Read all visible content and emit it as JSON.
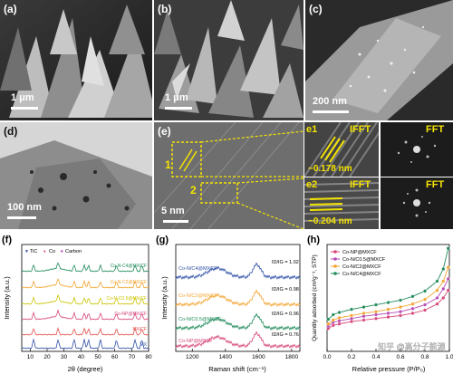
{
  "panels": {
    "a": {
      "label": "(a)",
      "scale": "1 μm"
    },
    "b": {
      "label": "(b)",
      "scale": "1 μm"
    },
    "c": {
      "label": "(c)",
      "scale": "200 nm"
    },
    "d": {
      "label": "(d)",
      "scale": "100 nm"
    },
    "e": {
      "label": "(e)",
      "scale": "5 nm",
      "box1": "1",
      "box2": "2"
    },
    "e1": {
      "label": "e1",
      "ifft": "IFFT",
      "fft": "FFT",
      "spacing": "~0.178 nm"
    },
    "e2": {
      "label": "e2",
      "ifft": "IFFT",
      "fft": "FFT",
      "spacing": "~0.204 nm"
    }
  },
  "colors": {
    "blue": "#2e4fa7",
    "red": "#e0504a",
    "pink": "#d6457a",
    "orange": "#f2a531",
    "yellow": "#c9c400",
    "green": "#1f8a5a",
    "purple": "#b44bb5",
    "gray": "#9a9a9a"
  },
  "chart_data": [
    {
      "id": "f",
      "label": "(f)",
      "type": "line",
      "xlabel": "2θ (degree)",
      "ylabel": "Intensity (a.u.)",
      "xlim": [
        5,
        80
      ],
      "xticks": [
        10,
        20,
        30,
        40,
        50,
        60,
        70,
        80
      ],
      "legend": [
        {
          "name": "TiC",
          "marker": "▼"
        },
        {
          "name": "Co",
          "marker": "♦"
        },
        {
          "name": "Carbon",
          "marker": "★"
        }
      ],
      "series": [
        {
          "name": "Co-N-C4@MX/CF"
        },
        {
          "name": "Co-N-C2@MX/CF"
        },
        {
          "name": "Co-N-C0.5@MX/CF"
        },
        {
          "name": "Co-NP@MX/CF"
        },
        {
          "name": "MX/CF"
        },
        {
          "name": "MX"
        }
      ]
    },
    {
      "id": "g",
      "label": "(g)",
      "type": "line",
      "xlabel": "Raman shift (cm⁻¹)",
      "ylabel": "Intensity (a.u.)",
      "xlim": [
        1100,
        1850
      ],
      "xticks": [
        1200,
        1400,
        1600,
        1800
      ],
      "series": [
        {
          "name": "Co-N/C4@MXCF",
          "ratio": "ID/IG = 1.02"
        },
        {
          "name": "Co-N/C2@MXCF",
          "ratio": "ID/IG = 0.98"
        },
        {
          "name": "Co-N/C0.5@MXCF",
          "ratio": "ID/IG = 0.96"
        },
        {
          "name": "Co-NP@MXCF",
          "ratio": "ID/IG = 0.76"
        }
      ]
    },
    {
      "id": "h",
      "label": "(h)",
      "type": "line",
      "xlabel": "Relative pressure (P/P₀)",
      "ylabel": "Quantity adsorbed (cm³g⁻¹, STP)",
      "xlim": [
        0,
        1.0
      ],
      "xticks": [
        0.0,
        0.2,
        0.4,
        0.6,
        0.8,
        1.0
      ],
      "xtick_labels": [
        "0.0",
        "0.2",
        "0.4",
        "0.6",
        "0.8",
        "1.0"
      ],
      "ylim": [
        0,
        140
      ],
      "series": [
        {
          "name": "Co-NP@MXCF",
          "x": [
            0.01,
            0.05,
            0.1,
            0.2,
            0.3,
            0.4,
            0.5,
            0.6,
            0.7,
            0.8,
            0.9,
            0.95,
            0.99
          ],
          "y": [
            30,
            34,
            36,
            39,
            41,
            43,
            45,
            47,
            50,
            54,
            62,
            70,
            80
          ]
        },
        {
          "name": "Co-N/C0.5@MXCF",
          "x": [
            0.01,
            0.05,
            0.1,
            0.2,
            0.3,
            0.4,
            0.5,
            0.6,
            0.7,
            0.8,
            0.9,
            0.95,
            0.99
          ],
          "y": [
            33,
            38,
            40,
            43,
            46,
            48,
            50,
            52,
            56,
            61,
            70,
            82,
            95
          ]
        },
        {
          "name": "Co-N/C2@MXCF",
          "x": [
            0.01,
            0.05,
            0.1,
            0.2,
            0.3,
            0.4,
            0.5,
            0.6,
            0.7,
            0.8,
            0.9,
            0.95,
            0.99
          ],
          "y": [
            36,
            41,
            44,
            47,
            50,
            52,
            55,
            58,
            62,
            68,
            80,
            92,
            110
          ]
        },
        {
          "name": "Co-N/C4@MXCF",
          "x": [
            0.01,
            0.05,
            0.1,
            0.2,
            0.3,
            0.4,
            0.5,
            0.6,
            0.7,
            0.8,
            0.9,
            0.95,
            0.99
          ],
          "y": [
            42,
            48,
            51,
            55,
            58,
            61,
            64,
            67,
            72,
            79,
            92,
            108,
            135
          ]
        }
      ]
    }
  ],
  "watermark": "知乎 @高分子能源"
}
